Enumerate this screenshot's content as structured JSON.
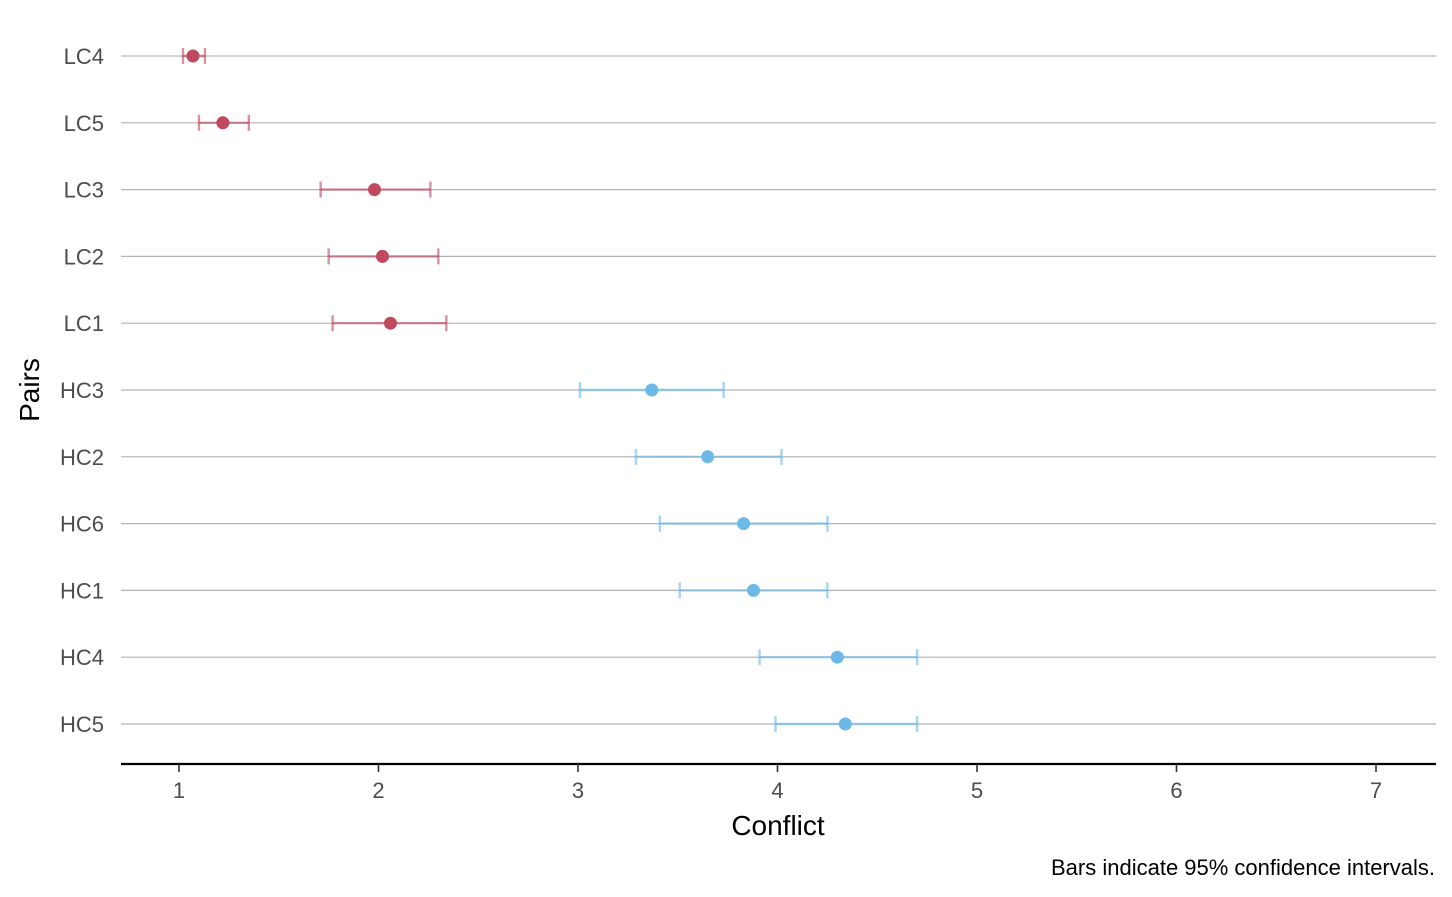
{
  "chart_data": {
    "type": "scatter",
    "xlabel": "Conflict",
    "ylabel": "Pairs",
    "caption": "Bars indicate 95% confidence intervals.",
    "xlim": [
      0.7,
      7.3
    ],
    "xticks": [
      1,
      2,
      3,
      4,
      5,
      6,
      7
    ],
    "grid": "horizontal",
    "colors": {
      "LC": "#c0485f",
      "HC": "#6cb8e6"
    },
    "categories": [
      "LC4",
      "LC5",
      "LC3",
      "LC2",
      "LC1",
      "HC3",
      "HC2",
      "HC6",
      "HC1",
      "HC4",
      "HC5"
    ],
    "points": [
      {
        "pair": "LC4",
        "group": "LC",
        "mean": 1.07,
        "lower": 1.02,
        "upper": 1.13
      },
      {
        "pair": "LC5",
        "group": "LC",
        "mean": 1.22,
        "lower": 1.1,
        "upper": 1.35
      },
      {
        "pair": "LC3",
        "group": "LC",
        "mean": 1.98,
        "lower": 1.71,
        "upper": 2.26
      },
      {
        "pair": "LC2",
        "group": "LC",
        "mean": 2.02,
        "lower": 1.75,
        "upper": 2.3
      },
      {
        "pair": "LC1",
        "group": "LC",
        "mean": 2.06,
        "lower": 1.77,
        "upper": 2.34
      },
      {
        "pair": "HC3",
        "group": "HC",
        "mean": 3.37,
        "lower": 3.01,
        "upper": 3.73
      },
      {
        "pair": "HC2",
        "group": "HC",
        "mean": 3.65,
        "lower": 3.29,
        "upper": 4.02
      },
      {
        "pair": "HC6",
        "group": "HC",
        "mean": 3.83,
        "lower": 3.41,
        "upper": 4.25
      },
      {
        "pair": "HC1",
        "group": "HC",
        "mean": 3.88,
        "lower": 3.51,
        "upper": 4.25
      },
      {
        "pair": "HC4",
        "group": "HC",
        "mean": 4.3,
        "lower": 3.91,
        "upper": 4.7
      },
      {
        "pair": "HC5",
        "group": "HC",
        "mean": 4.34,
        "lower": 3.99,
        "upper": 4.7
      }
    ]
  }
}
